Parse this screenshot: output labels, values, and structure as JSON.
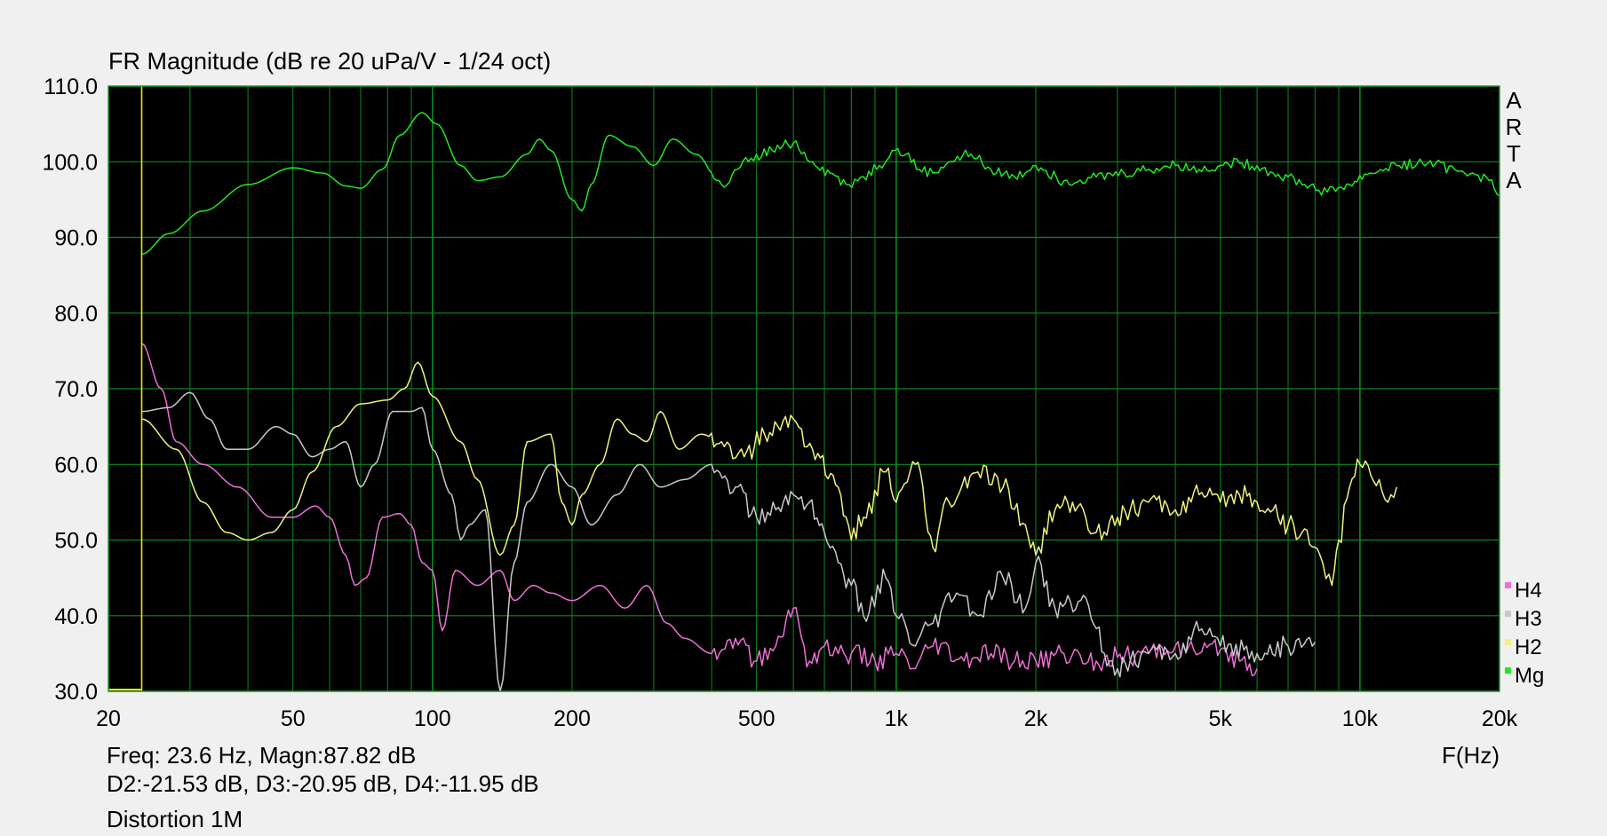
{
  "colors": {
    "background": "#f0f0f0",
    "plot_background": "#000000",
    "grid": "#0a8a1e",
    "frame": "#1e9a2a",
    "Mg": "#22e822",
    "H2": "#f2f27a",
    "H3": "#c8c8c8",
    "H4": "#ee6fd6",
    "cursor": "#e8e800"
  },
  "brand_letters": [
    "A",
    "R",
    "T",
    "A"
  ],
  "readouts": {
    "line1": "Freq: 23.6 Hz, Magn:87.82 dB",
    "line2": "D2:-21.53 dB, D3:-20.95 dB, D4:-11.95 dB",
    "line3": "Distortion 1M"
  },
  "chart_data": {
    "type": "line",
    "title": "FR Magnitude (dB re 20 uPa/V - 1/24 oct)",
    "xlabel": "F(Hz)",
    "ylabel": "",
    "x_scale": "log",
    "xlim": [
      20,
      20000
    ],
    "ylim": [
      30,
      110
    ],
    "grid": true,
    "legend_position": "bottom-right",
    "x_ticks": [
      20,
      50,
      100,
      200,
      500,
      1000,
      2000,
      5000,
      10000,
      20000
    ],
    "x_tick_labels": [
      "20",
      "50",
      "100",
      "200",
      "500",
      "1k",
      "2k",
      "5k",
      "10k",
      "20k"
    ],
    "y_ticks": [
      30,
      40,
      50,
      60,
      70,
      80,
      90,
      100,
      110
    ],
    "y_tick_labels": [
      "30.0",
      "40.0",
      "50.0",
      "60.0",
      "70.0",
      "80.0",
      "90.0",
      "100.0",
      "110.0"
    ],
    "cursor_freq": 23.6,
    "legend_order": [
      "H4",
      "H3",
      "H2",
      "Mg"
    ],
    "series": [
      {
        "name": "Mg",
        "color": "#22e822",
        "points": [
          [
            23.6,
            87.8
          ],
          [
            27,
            90.5
          ],
          [
            32,
            93.5
          ],
          [
            40,
            97
          ],
          [
            50,
            99.2
          ],
          [
            58,
            98.5
          ],
          [
            65,
            96.8
          ],
          [
            70,
            96.5
          ],
          [
            78,
            99
          ],
          [
            85,
            103.5
          ],
          [
            95,
            106.5
          ],
          [
            102,
            105
          ],
          [
            115,
            99.5
          ],
          [
            125,
            97.5
          ],
          [
            140,
            98
          ],
          [
            160,
            101
          ],
          [
            170,
            103
          ],
          [
            180,
            101.5
          ],
          [
            200,
            95
          ],
          [
            210,
            93.5
          ],
          [
            220,
            97
          ],
          [
            240,
            103.5
          ],
          [
            270,
            102
          ],
          [
            300,
            99.5
          ],
          [
            330,
            103
          ],
          [
            370,
            101
          ],
          [
            420,
            97
          ],
          [
            480,
            100
          ],
          [
            540,
            101.5
          ],
          [
            600,
            102.5
          ],
          [
            660,
            100
          ],
          [
            720,
            98.5
          ],
          [
            780,
            97
          ],
          [
            850,
            98
          ],
          [
            920,
            99.5
          ],
          [
            980,
            101.5
          ],
          [
            1050,
            101
          ],
          [
            1120,
            99
          ],
          [
            1200,
            98.5
          ],
          [
            1300,
            100
          ],
          [
            1450,
            101
          ],
          [
            1600,
            99
          ],
          [
            1800,
            98
          ],
          [
            2000,
            99.5
          ],
          [
            2300,
            97.5
          ],
          [
            2700,
            98
          ],
          [
            3100,
            98.5
          ],
          [
            3500,
            99
          ],
          [
            4000,
            99.5
          ],
          [
            4500,
            99
          ],
          [
            5000,
            99.5
          ],
          [
            5500,
            99.8
          ],
          [
            6000,
            99.5
          ],
          [
            6500,
            98.5
          ],
          [
            7000,
            98
          ],
          [
            7600,
            97
          ],
          [
            8500,
            96
          ],
          [
            9500,
            97
          ],
          [
            10500,
            98.5
          ],
          [
            12000,
            99.5
          ],
          [
            14000,
            99.8
          ],
          [
            16000,
            99
          ],
          [
            17500,
            98.5
          ],
          [
            19000,
            97.5
          ],
          [
            20000,
            95.5
          ]
        ]
      },
      {
        "name": "H2",
        "color": "#f2f27a",
        "points": [
          [
            23.6,
            66
          ],
          [
            28,
            62
          ],
          [
            32,
            55
          ],
          [
            36,
            51
          ],
          [
            40,
            50
          ],
          [
            45,
            51
          ],
          [
            50,
            54
          ],
          [
            55,
            59
          ],
          [
            62,
            65
          ],
          [
            70,
            68
          ],
          [
            80,
            68.5
          ],
          [
            87,
            70
          ],
          [
            93,
            73.5
          ],
          [
            100,
            69
          ],
          [
            115,
            63
          ],
          [
            125,
            58
          ],
          [
            140,
            48
          ],
          [
            150,
            52
          ],
          [
            160,
            63
          ],
          [
            180,
            64
          ],
          [
            190,
            55
          ],
          [
            200,
            52
          ],
          [
            210,
            56
          ],
          [
            230,
            60
          ],
          [
            250,
            66
          ],
          [
            270,
            64
          ],
          [
            290,
            63
          ],
          [
            310,
            67
          ],
          [
            340,
            62
          ],
          [
            380,
            64
          ],
          [
            420,
            63
          ],
          [
            470,
            61
          ],
          [
            520,
            64
          ],
          [
            600,
            66
          ],
          [
            660,
            62
          ],
          [
            750,
            57
          ],
          [
            800,
            50
          ],
          [
            850,
            53
          ],
          [
            950,
            59
          ],
          [
            1000,
            55
          ],
          [
            1100,
            60
          ],
          [
            1200,
            49
          ],
          [
            1300,
            55
          ],
          [
            1500,
            59
          ],
          [
            1700,
            57
          ],
          [
            1900,
            52
          ],
          [
            2000,
            48
          ],
          [
            2200,
            54
          ],
          [
            2400,
            55
          ],
          [
            2700,
            51
          ],
          [
            3000,
            53
          ],
          [
            3500,
            55
          ],
          [
            4000,
            54
          ],
          [
            4500,
            56
          ],
          [
            5000,
            55
          ],
          [
            5500,
            56
          ],
          [
            6000,
            55
          ],
          [
            6500,
            54
          ],
          [
            7000,
            52
          ],
          [
            7500,
            51
          ],
          [
            8200,
            48
          ],
          [
            8700,
            44
          ],
          [
            9000,
            50
          ],
          [
            9500,
            57
          ],
          [
            10000,
            60
          ],
          [
            11000,
            58
          ],
          [
            11500,
            55
          ],
          [
            12000,
            57
          ]
        ]
      },
      {
        "name": "H3",
        "color": "#c8c8c8",
        "points": [
          [
            23.6,
            67
          ],
          [
            27,
            67.5
          ],
          [
            30,
            69.5
          ],
          [
            33,
            66
          ],
          [
            36,
            62
          ],
          [
            40,
            62
          ],
          [
            46,
            65
          ],
          [
            50,
            64
          ],
          [
            55,
            61
          ],
          [
            60,
            62
          ],
          [
            65,
            63
          ],
          [
            70,
            57
          ],
          [
            75,
            60
          ],
          [
            82,
            67
          ],
          [
            90,
            67
          ],
          [
            95,
            67.5
          ],
          [
            100,
            62
          ],
          [
            110,
            56
          ],
          [
            115,
            50
          ],
          [
            120,
            52
          ],
          [
            130,
            54
          ],
          [
            140,
            30
          ],
          [
            150,
            47
          ],
          [
            160,
            55
          ],
          [
            180,
            60
          ],
          [
            200,
            57
          ],
          [
            220,
            52
          ],
          [
            250,
            56
          ],
          [
            280,
            60
          ],
          [
            310,
            57
          ],
          [
            350,
            58
          ],
          [
            400,
            60
          ],
          [
            450,
            57
          ],
          [
            500,
            53
          ],
          [
            550,
            54
          ],
          [
            600,
            56
          ],
          [
            650,
            55
          ],
          [
            700,
            51
          ],
          [
            750,
            47
          ],
          [
            800,
            44
          ],
          [
            850,
            40
          ],
          [
            950,
            45
          ],
          [
            1000,
            40
          ],
          [
            1100,
            36
          ],
          [
            1200,
            39
          ],
          [
            1350,
            43
          ],
          [
            1500,
            40
          ],
          [
            1700,
            45
          ],
          [
            1900,
            41
          ],
          [
            2000,
            47
          ],
          [
            2200,
            41
          ],
          [
            2500,
            42
          ],
          [
            3000,
            33
          ],
          [
            3500,
            35
          ],
          [
            4000,
            35
          ],
          [
            4500,
            38
          ],
          [
            5000,
            36
          ],
          [
            6000,
            35
          ],
          [
            7000,
            36
          ],
          [
            8000,
            36.5
          ]
        ]
      },
      {
        "name": "H4",
        "color": "#ee6fd6",
        "points": [
          [
            23.6,
            76
          ],
          [
            26,
            70
          ],
          [
            28,
            63
          ],
          [
            32,
            60
          ],
          [
            38,
            57
          ],
          [
            45,
            53
          ],
          [
            50,
            53
          ],
          [
            56,
            54.5
          ],
          [
            60,
            53
          ],
          [
            65,
            48
          ],
          [
            68,
            44
          ],
          [
            72,
            45
          ],
          [
            78,
            53
          ],
          [
            85,
            53.5
          ],
          [
            90,
            52
          ],
          [
            95,
            47
          ],
          [
            100,
            46
          ],
          [
            105,
            38
          ],
          [
            112,
            46
          ],
          [
            125,
            44
          ],
          [
            140,
            46
          ],
          [
            150,
            42
          ],
          [
            165,
            44
          ],
          [
            180,
            43
          ],
          [
            200,
            42
          ],
          [
            230,
            44
          ],
          [
            260,
            41
          ],
          [
            290,
            44
          ],
          [
            320,
            39
          ],
          [
            350,
            37
          ],
          [
            400,
            35
          ],
          [
            450,
            37
          ],
          [
            500,
            34
          ],
          [
            550,
            36
          ],
          [
            600,
            41
          ],
          [
            650,
            34
          ],
          [
            700,
            36
          ],
          [
            750,
            35
          ],
          [
            800,
            35
          ],
          [
            900,
            34
          ],
          [
            1000,
            35
          ],
          [
            1100,
            33
          ],
          [
            1200,
            36
          ],
          [
            1400,
            34
          ],
          [
            1600,
            35
          ],
          [
            1800,
            34
          ],
          [
            2000,
            34
          ],
          [
            2300,
            35
          ],
          [
            2700,
            34
          ],
          [
            3000,
            34.5
          ],
          [
            3500,
            35
          ],
          [
            4000,
            36
          ],
          [
            4500,
            35
          ],
          [
            5000,
            35.5
          ],
          [
            5500,
            34
          ],
          [
            6000,
            33
          ]
        ]
      }
    ]
  }
}
